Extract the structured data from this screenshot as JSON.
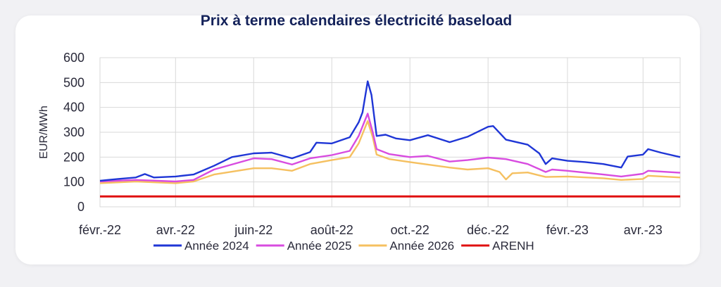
{
  "chart_data": {
    "type": "line",
    "title": "Prix à terme calendaires électricité baseload",
    "ylabel": "EUR/MWh",
    "xlabel": "",
    "ylim": [
      0,
      600
    ],
    "yticks": [
      0,
      100,
      200,
      300,
      400,
      500,
      600
    ],
    "xlim": [
      "2022-02-01",
      "2023-04-30"
    ],
    "x_ticks": [
      {
        "label": "févr.-22",
        "date": "2022-02-01"
      },
      {
        "label": "avr.-22",
        "date": "2022-04-01"
      },
      {
        "label": "juin-22",
        "date": "2022-06-01"
      },
      {
        "label": "août-22",
        "date": "2022-08-01"
      },
      {
        "label": "oct.-22",
        "date": "2022-10-01"
      },
      {
        "label": "déc.-22",
        "date": "2022-12-01"
      },
      {
        "label": "févr.-23",
        "date": "2023-02-01"
      },
      {
        "label": "avr.-23",
        "date": "2023-04-01"
      }
    ],
    "grid": true,
    "legend_position": "bottom",
    "series": [
      {
        "name": "Année 2024",
        "color": "#1f36d6",
        "points": [
          [
            "2022-02-01",
            105
          ],
          [
            "2022-02-15",
            112
          ],
          [
            "2022-03-01",
            118
          ],
          [
            "2022-03-08",
            132
          ],
          [
            "2022-03-15",
            118
          ],
          [
            "2022-04-01",
            122
          ],
          [
            "2022-04-15",
            130
          ],
          [
            "2022-05-01",
            165
          ],
          [
            "2022-05-15",
            200
          ],
          [
            "2022-06-01",
            215
          ],
          [
            "2022-06-15",
            218
          ],
          [
            "2022-07-01",
            195
          ],
          [
            "2022-07-15",
            220
          ],
          [
            "2022-07-20",
            258
          ],
          [
            "2022-08-01",
            255
          ],
          [
            "2022-08-15",
            280
          ],
          [
            "2022-08-22",
            340
          ],
          [
            "2022-08-25",
            380
          ],
          [
            "2022-08-29",
            505
          ],
          [
            "2022-09-01",
            450
          ],
          [
            "2022-09-05",
            285
          ],
          [
            "2022-09-12",
            290
          ],
          [
            "2022-09-20",
            275
          ],
          [
            "2022-10-01",
            268
          ],
          [
            "2022-10-15",
            288
          ],
          [
            "2022-11-01",
            260
          ],
          [
            "2022-11-15",
            282
          ],
          [
            "2022-12-01",
            322
          ],
          [
            "2022-12-05",
            325
          ],
          [
            "2022-12-15",
            270
          ],
          [
            "2023-01-01",
            250
          ],
          [
            "2023-01-10",
            215
          ],
          [
            "2023-01-15",
            172
          ],
          [
            "2023-01-20",
            195
          ],
          [
            "2023-02-01",
            185
          ],
          [
            "2023-02-15",
            180
          ],
          [
            "2023-03-01",
            172
          ],
          [
            "2023-03-15",
            158
          ],
          [
            "2023-03-20",
            202
          ],
          [
            "2023-04-01",
            210
          ],
          [
            "2023-04-05",
            232
          ],
          [
            "2023-04-15",
            218
          ],
          [
            "2023-04-30",
            200
          ]
        ]
      },
      {
        "name": "Année 2025",
        "color": "#d84ce0",
        "points": [
          [
            "2022-02-01",
            102
          ],
          [
            "2022-03-01",
            108
          ],
          [
            "2022-04-01",
            102
          ],
          [
            "2022-04-15",
            108
          ],
          [
            "2022-05-01",
            150
          ],
          [
            "2022-06-01",
            195
          ],
          [
            "2022-06-15",
            192
          ],
          [
            "2022-07-01",
            170
          ],
          [
            "2022-07-15",
            195
          ],
          [
            "2022-08-01",
            208
          ],
          [
            "2022-08-15",
            225
          ],
          [
            "2022-08-22",
            285
          ],
          [
            "2022-08-29",
            375
          ],
          [
            "2022-09-02",
            300
          ],
          [
            "2022-09-05",
            232
          ],
          [
            "2022-09-15",
            212
          ],
          [
            "2022-10-01",
            200
          ],
          [
            "2022-10-15",
            205
          ],
          [
            "2022-11-01",
            182
          ],
          [
            "2022-11-15",
            188
          ],
          [
            "2022-12-01",
            198
          ],
          [
            "2022-12-15",
            192
          ],
          [
            "2023-01-01",
            172
          ],
          [
            "2023-01-15",
            140
          ],
          [
            "2023-01-20",
            150
          ],
          [
            "2023-02-01",
            145
          ],
          [
            "2023-03-01",
            130
          ],
          [
            "2023-03-15",
            122
          ],
          [
            "2023-04-01",
            133
          ],
          [
            "2023-04-05",
            145
          ],
          [
            "2023-04-30",
            137
          ]
        ]
      },
      {
        "name": "Année 2026",
        "color": "#f5c060",
        "points": [
          [
            "2022-02-01",
            95
          ],
          [
            "2022-03-01",
            102
          ],
          [
            "2022-04-01",
            95
          ],
          [
            "2022-04-15",
            102
          ],
          [
            "2022-05-01",
            130
          ],
          [
            "2022-06-01",
            155
          ],
          [
            "2022-06-15",
            155
          ],
          [
            "2022-07-01",
            145
          ],
          [
            "2022-07-15",
            172
          ],
          [
            "2022-08-01",
            188
          ],
          [
            "2022-08-15",
            200
          ],
          [
            "2022-08-22",
            255
          ],
          [
            "2022-08-29",
            345
          ],
          [
            "2022-09-02",
            280
          ],
          [
            "2022-09-05",
            210
          ],
          [
            "2022-09-15",
            192
          ],
          [
            "2022-10-01",
            180
          ],
          [
            "2022-10-15",
            170
          ],
          [
            "2022-11-01",
            158
          ],
          [
            "2022-11-15",
            150
          ],
          [
            "2022-12-01",
            155
          ],
          [
            "2022-12-10",
            140
          ],
          [
            "2022-12-15",
            110
          ],
          [
            "2022-12-20",
            135
          ],
          [
            "2023-01-01",
            138
          ],
          [
            "2023-01-15",
            120
          ],
          [
            "2023-02-01",
            122
          ],
          [
            "2023-03-01",
            115
          ],
          [
            "2023-03-15",
            108
          ],
          [
            "2023-04-01",
            112
          ],
          [
            "2023-04-05",
            125
          ],
          [
            "2023-04-30",
            118
          ]
        ]
      },
      {
        "name": "ARENH",
        "color": "#e01010",
        "points": [
          [
            "2022-02-01",
            42
          ],
          [
            "2023-04-30",
            42
          ]
        ]
      }
    ]
  }
}
